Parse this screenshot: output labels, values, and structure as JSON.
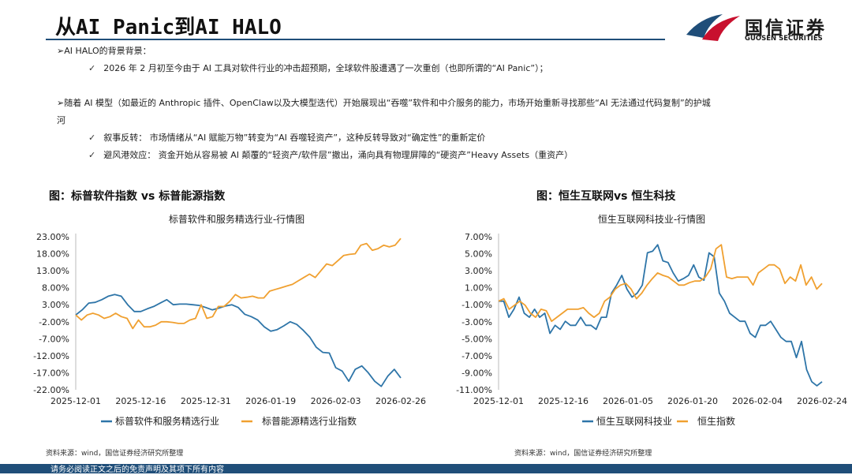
{
  "page_title": "从AI Panic到AI HALO",
  "brand": {
    "name": "国信证券",
    "sub": "GUOSEN SECURITIES",
    "colors": {
      "red": "#c8102e",
      "blue": "#1f4e79"
    }
  },
  "bullets": {
    "b1_heading": "➢AI HALO的背景背景：",
    "b1_item": "2026 年 2 月初至今由于 AI 工具对软件行业的冲击超预期，全球软件股遭遇了一次重创（也即所谓的“AI Panic”）；",
    "b2_heading_1": "➢随着 AI 模型（如最近的 Anthropic 插件、OpenClaw以及大模型迭代）开始展现出“吞噬”软件和中介服务的能力，市场开始重新寻找那些“AI 无法通过代码复制”的护城",
    "b2_heading_2": "河",
    "b2_item1": "叙事反转： 市场情绪从“AI 赋能万物”转变为“AI 吞噬轻资产”，这种反转导致对“确定性”的重新定价",
    "b2_item2": "避风港效应： 资金开始从容易被 AI 颠覆的“轻资产/软件层”撤出，涌向具有物理屏障的“硬资产”Heavy Assets（重资产）",
    "check": "✓"
  },
  "chart_data": [
    {
      "type": "line",
      "figure_caption": "图：标普软件指数 vs 标普能源指数",
      "title": "标普软件和服务精选行业-行情图",
      "y_ticks": [
        "23.00%",
        "18.00%",
        "13.00%",
        "8.00%",
        "3.00%",
        "-2.00%",
        "-7.00%",
        "-12.00%",
        "-17.00%",
        "-22.00%"
      ],
      "ylim": [
        -22,
        23
      ],
      "x_ticks": [
        "2025-12-01",
        "2025-12-16",
        "2025-12-31",
        "2026-01-19",
        "2026-02-03",
        "2026-02-26"
      ],
      "series": [
        {
          "name": "标普软件和服务精选行业",
          "color": "#2e75a8",
          "values": [
            0,
            1.5,
            3.5,
            3.7,
            4.5,
            5.5,
            6,
            5.5,
            3,
            1,
            1,
            1.8,
            2.5,
            3.5,
            4.5,
            3,
            3.2,
            3.2,
            3,
            2.8,
            2.2,
            1.5,
            2,
            2.6,
            3,
            2.2,
            0.2,
            -0.5,
            -1.5,
            -3.5,
            -4.8,
            -4.3,
            -3.2,
            -2,
            -2.8,
            -4.5,
            -6.5,
            -9.5,
            -11,
            -11.2,
            -15.5,
            -16.5,
            -19.5,
            -16,
            -15,
            -17,
            -19.5,
            -21,
            -18,
            -16,
            -18.5
          ]
        },
        {
          "name": "标普能源精选行业指数",
          "color": "#f0a030",
          "values": [
            0,
            -1.5,
            0,
            0.5,
            0,
            -1,
            -0.5,
            0.5,
            -0.5,
            -1,
            -4,
            -1.5,
            -3.5,
            -3.5,
            -3,
            -2,
            -2,
            -2.2,
            -2.5,
            -2.5,
            -1.5,
            -1,
            3,
            -1,
            -0.5,
            2.5,
            2.5,
            4,
            6,
            5,
            5.2,
            5.5,
            5,
            5,
            7,
            7.5,
            8,
            8.5,
            9,
            10,
            11,
            12,
            11,
            13,
            15,
            14.5,
            16,
            17.5,
            17.8,
            18,
            20.5,
            21,
            19,
            19.5,
            20.5,
            20,
            20.5,
            22.5
          ]
        }
      ]
    },
    {
      "type": "line",
      "figure_caption": "图：恒生互联网vs 恒生科技",
      "title": "恒生互联网科技业-行情图",
      "y_ticks": [
        "7.00%",
        "5.00%",
        "3.00%",
        "1.00%",
        "-1.00%",
        "-3.00%",
        "-5.00%",
        "-7.00%",
        "-9.00%",
        "-11.00%"
      ],
      "ylim": [
        -11,
        8
      ],
      "x_ticks": [
        "2025-12-01",
        "2025-12-16",
        "2026-01-05",
        "2026-01-20",
        "2026-02-04",
        "2026-02-24"
      ],
      "series": [
        {
          "name": "恒生互联网科技业",
          "color": "#2e75a8",
          "values": [
            0,
            0,
            -2,
            -1,
            0.5,
            -1.5,
            -2,
            -1,
            -2,
            -1.5,
            -4,
            -3,
            -3.5,
            -2.5,
            -3,
            -3,
            -2,
            -3,
            -3,
            -3.5,
            -2,
            -2,
            1,
            2,
            3.2,
            1.5,
            0.5,
            1,
            2,
            6,
            6.2,
            7,
            5,
            4.8,
            3.5,
            2.5,
            2.8,
            3.2,
            4.5,
            3,
            2.6,
            6,
            5.5,
            1,
            0,
            -1.5,
            -2,
            -2.5,
            -2.5,
            -4,
            -4.5,
            -3,
            -3,
            -2.5,
            -3.5,
            -4.5,
            -5,
            -5,
            -7,
            -5,
            -8.5,
            -10,
            -10.5,
            -10
          ]
        },
        {
          "name": "恒生指数",
          "color": "#f0a030",
          "values": [
            0,
            0.3,
            -1,
            -0.5,
            0,
            -0.5,
            -1.5,
            -2,
            -1,
            -1.2,
            -2.5,
            -2,
            -1.5,
            -1,
            -1,
            -1,
            -0.8,
            -1.5,
            -2,
            -1.5,
            0,
            0.5,
            1.5,
            2,
            2.2,
            1.5,
            0.3,
            1,
            2,
            2.8,
            3.5,
            3.2,
            3,
            2.5,
            2,
            2,
            2.3,
            2.5,
            2.5,
            3,
            4,
            6.5,
            7,
            3,
            2.8,
            3,
            3,
            3,
            2,
            3.5,
            4,
            4.5,
            4.5,
            4,
            2.2,
            3,
            2.5,
            4.5,
            2,
            3,
            1.5,
            2.2
          ]
        }
      ]
    }
  ],
  "sources": {
    "left": "资料来源：wind，国信证券经济研究所整理",
    "right": "资料来源：wind，国信证券经济研究所整理"
  },
  "footer": "请务必阅读正文之后的免责声明及其项下所有内容"
}
